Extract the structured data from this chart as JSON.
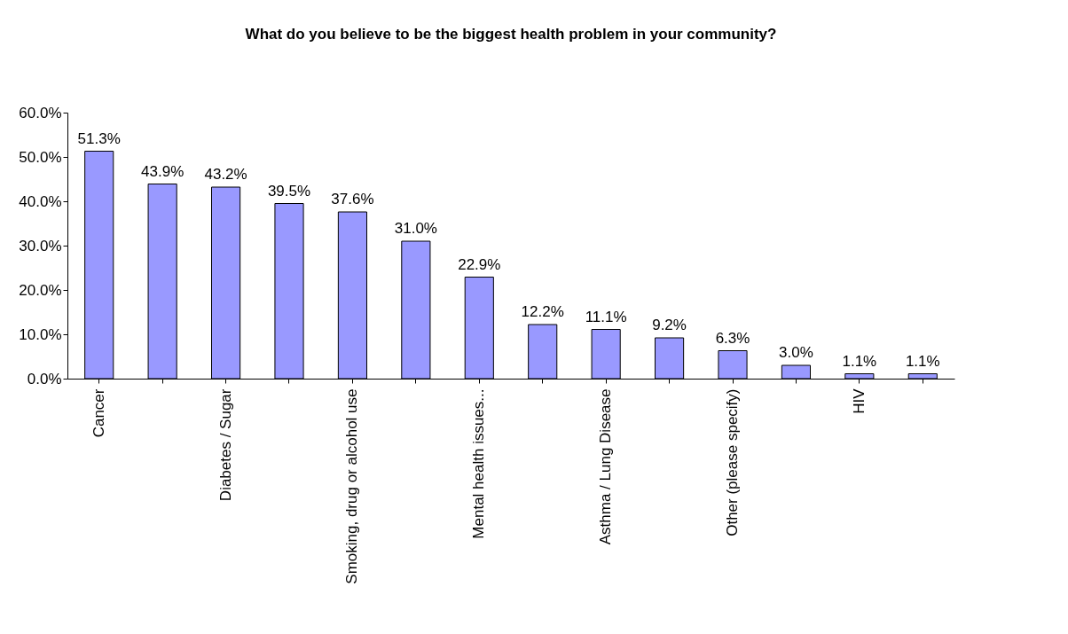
{
  "chart_data": {
    "type": "bar",
    "title": "What do you believe to be the biggest health problem in your community?",
    "categories": [
      "Cancer",
      null,
      "Diabetes / Sugar",
      null,
      "Smoking, drug or alcohol use",
      null,
      "Mental health issues...",
      null,
      "Asthma / Lung Disease",
      null,
      "Other (please specify)",
      null,
      "HIV",
      null
    ],
    "values": [
      51.3,
      43.9,
      43.2,
      39.5,
      37.6,
      31.0,
      22.9,
      12.2,
      11.1,
      9.2,
      6.3,
      3.0,
      1.1,
      1.1
    ],
    "value_labels": [
      "51.3%",
      "43.9%",
      "43.2%",
      "39.5%",
      "37.6%",
      "31.0%",
      "22.9%",
      "12.2%",
      "11.1%",
      "9.2%",
      "6.3%",
      "3.0%",
      "1.1%",
      "1.1%"
    ],
    "color": "#9999ff",
    "ylim": [
      0,
      60
    ],
    "yticks": [
      {
        "value": 0,
        "label": "0.0%"
      },
      {
        "value": 10,
        "label": "10.0%"
      },
      {
        "value": 20,
        "label": "20.0%"
      },
      {
        "value": 30,
        "label": "30.0%"
      },
      {
        "value": 40,
        "label": "40.0%"
      },
      {
        "value": 50,
        "label": "50.0%"
      },
      {
        "value": 60,
        "label": "60.0%"
      }
    ],
    "grid": false
  }
}
